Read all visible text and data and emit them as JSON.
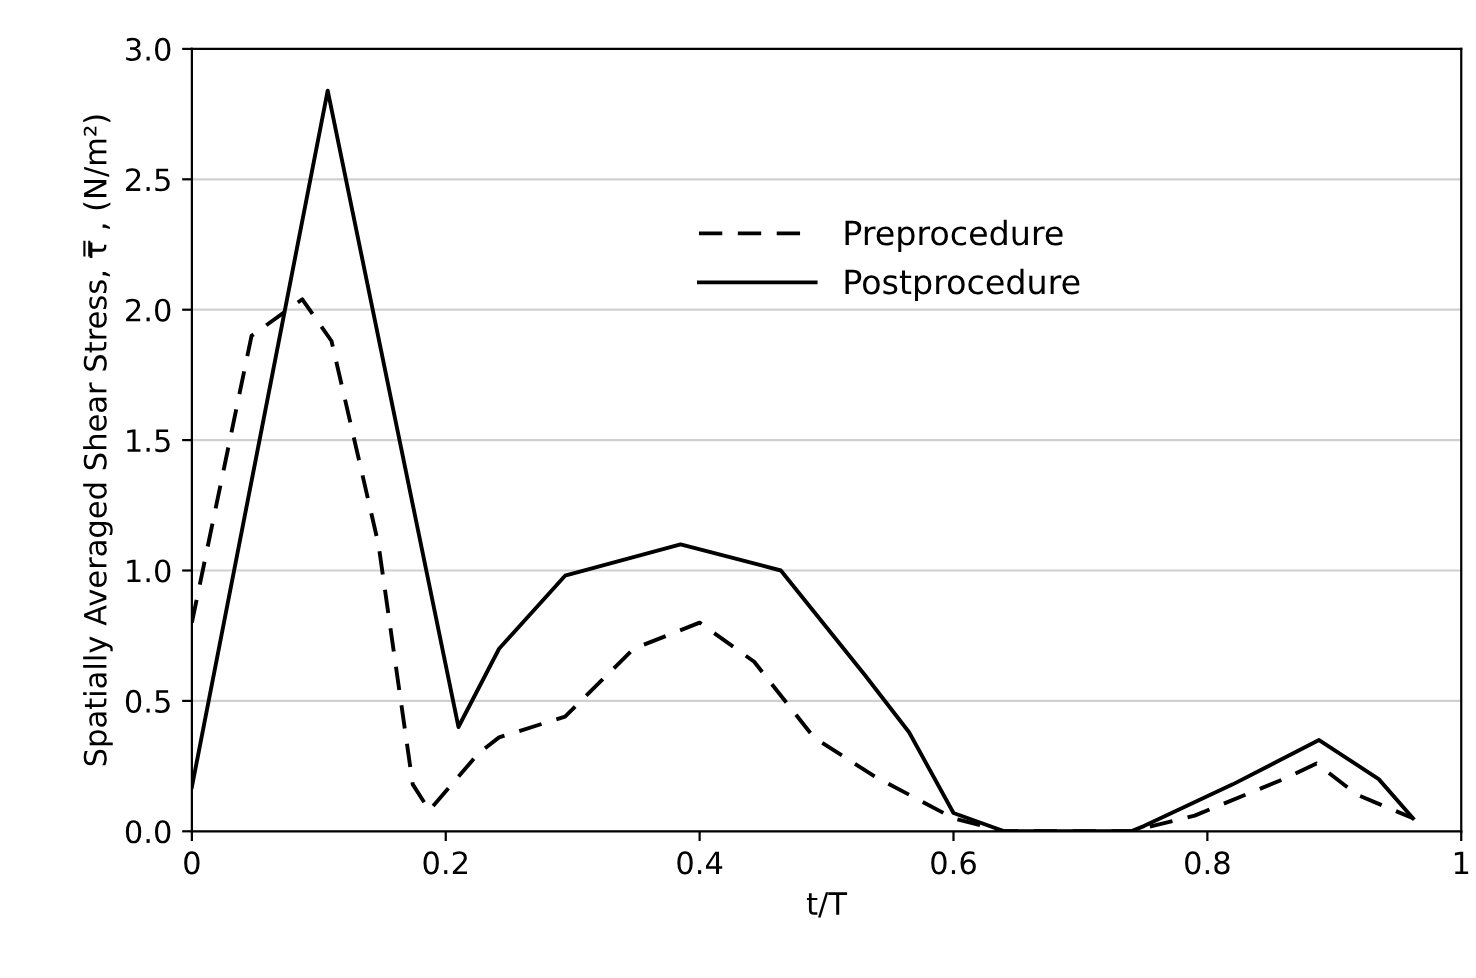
{
  "chart_data": {
    "type": "line",
    "xlabel": "t/T",
    "ylabel": "Spatially Averaged Shear Stress, τ̿ , (N/m²)",
    "xlim": [
      0,
      1
    ],
    "ylim": [
      0,
      3.0
    ],
    "xticks": [
      0,
      0.2,
      0.4,
      0.6,
      0.8,
      1
    ],
    "yticks": [
      {
        "value": 0,
        "label": "0.0"
      },
      0.5,
      {
        "value": 1,
        "label": "1.0"
      },
      1.5,
      {
        "value": 2,
        "label": "2.0"
      },
      2.5,
      {
        "value": 3,
        "label": "3.0"
      }
    ],
    "grid": "y",
    "legend": "top",
    "marker": "none",
    "series": [
      {
        "name": "Preprocedure",
        "color": "#000000",
        "line_style": "dashed",
        "x": [
          0,
          0.047,
          0.087,
          0.11,
          0.147,
          0.174,
          0.187,
          0.226,
          0.242,
          0.294,
          0.348,
          0.4,
          0.443,
          0.49,
          0.538,
          0.6,
          0.64,
          0.74,
          0.79,
          0.86,
          0.886,
          0.918,
          0.962
        ],
        "values": [
          0.8,
          1.9,
          2.04,
          1.88,
          1.1,
          0.18,
          0.08,
          0.3,
          0.36,
          0.44,
          0.7,
          0.8,
          0.65,
          0.36,
          0.21,
          0.05,
          0,
          0,
          0.06,
          0.2,
          0.26,
          0.14,
          0.05
        ]
      },
      {
        "name": "Postprocedure",
        "color": "#000000",
        "line_style": "solid",
        "x": [
          0,
          0.107,
          0.21,
          0.242,
          0.294,
          0.385,
          0.464,
          0.53,
          0.565,
          0.6,
          0.64,
          0.74,
          0.75,
          0.82,
          0.888,
          0.935,
          0.962
        ],
        "values": [
          0.17,
          2.84,
          0.4,
          0.7,
          0.98,
          1.1,
          1.0,
          0.6,
          0.38,
          0.07,
          0,
          0,
          0.02,
          0.18,
          0.35,
          0.2,
          0.05
        ]
      }
    ]
  }
}
